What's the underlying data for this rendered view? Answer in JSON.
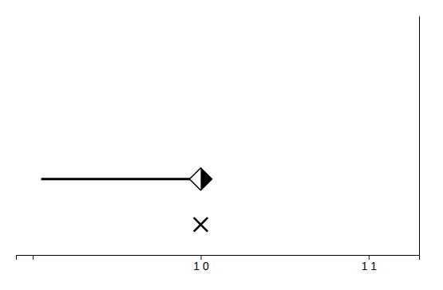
{
  "chart_data": {
    "type": "scatter",
    "series": [
      {
        "x": [
          10
        ],
        "values": [
          0.12
        ],
        "xerr_minus": [
          0.95
        ],
        "xerr_plus": [
          0.0
        ],
        "color": "#000000",
        "marker": "diamond"
      },
      {
        "x": [
          10
        ],
        "values": [
          0.0
        ],
        "color": "#000000",
        "marker": "x"
      }
    ],
    "xlim": [
      8.9,
      11.3
    ],
    "ylim": [
      -0.08,
      0.55
    ],
    "xticks": [
      {
        "value": 9,
        "label": null
      },
      {
        "value": 10,
        "label": "1 0"
      },
      {
        "value": 11,
        "label": "1 1"
      }
    ],
    "yticks": [],
    "tick_labels": "x"
  }
}
